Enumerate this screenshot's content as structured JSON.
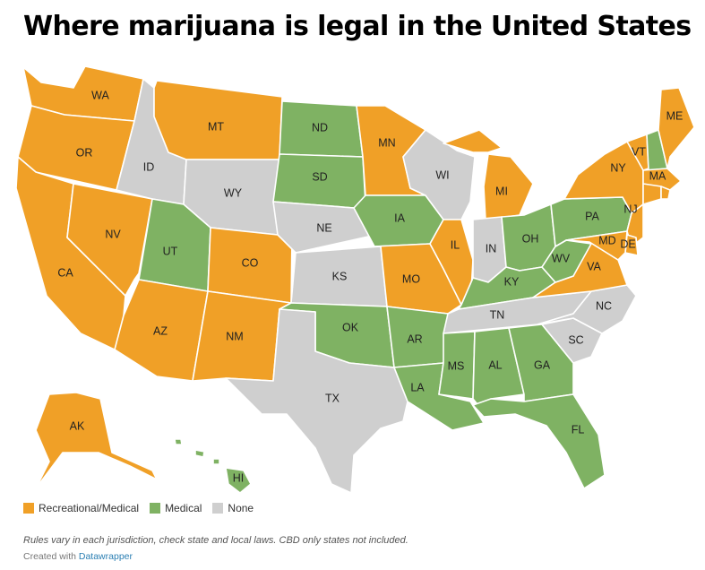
{
  "title": "Where marijuana is legal in the United States",
  "colors": {
    "recreational": "#f0a027",
    "medical": "#7fb263",
    "none": "#cfcfcf"
  },
  "legend": [
    {
      "key": "recreational",
      "label": "Recreational/Medical"
    },
    {
      "key": "medical",
      "label": "Medical"
    },
    {
      "key": "none",
      "label": "None"
    }
  ],
  "note": "Rules vary in each jurisdiction, check state and local laws. CBD only states not included.",
  "credit": {
    "prefix": "Created with",
    "link": "Datawrapper"
  },
  "states": [
    {
      "id": "WA",
      "status": "recreational"
    },
    {
      "id": "OR",
      "status": "recreational"
    },
    {
      "id": "CA",
      "status": "recreational"
    },
    {
      "id": "NV",
      "status": "recreational"
    },
    {
      "id": "ID",
      "status": "none"
    },
    {
      "id": "MT",
      "status": "recreational"
    },
    {
      "id": "WY",
      "status": "none"
    },
    {
      "id": "UT",
      "status": "medical"
    },
    {
      "id": "AZ",
      "status": "recreational"
    },
    {
      "id": "CO",
      "status": "recreational"
    },
    {
      "id": "NM",
      "status": "recreational"
    },
    {
      "id": "ND",
      "status": "medical"
    },
    {
      "id": "SD",
      "status": "medical"
    },
    {
      "id": "NE",
      "status": "none"
    },
    {
      "id": "KS",
      "status": "none"
    },
    {
      "id": "OK",
      "status": "medical"
    },
    {
      "id": "TX",
      "status": "none"
    },
    {
      "id": "MN",
      "status": "recreational"
    },
    {
      "id": "IA",
      "status": "medical"
    },
    {
      "id": "MO",
      "status": "recreational"
    },
    {
      "id": "AR",
      "status": "medical"
    },
    {
      "id": "LA",
      "status": "medical"
    },
    {
      "id": "WI",
      "status": "none"
    },
    {
      "id": "IL",
      "status": "recreational"
    },
    {
      "id": "MI",
      "status": "recreational"
    },
    {
      "id": "IN",
      "status": "none"
    },
    {
      "id": "OH",
      "status": "medical"
    },
    {
      "id": "KY",
      "status": "medical"
    },
    {
      "id": "TN",
      "status": "none"
    },
    {
      "id": "MS",
      "status": "medical"
    },
    {
      "id": "AL",
      "status": "medical"
    },
    {
      "id": "GA",
      "status": "medical"
    },
    {
      "id": "FL",
      "status": "medical"
    },
    {
      "id": "SC",
      "status": "none"
    },
    {
      "id": "NC",
      "status": "none"
    },
    {
      "id": "VA",
      "status": "recreational"
    },
    {
      "id": "WV",
      "status": "medical"
    },
    {
      "id": "PA",
      "status": "medical"
    },
    {
      "id": "NY",
      "status": "recreational"
    },
    {
      "id": "VT",
      "status": "recreational"
    },
    {
      "id": "NH",
      "status": "medical"
    },
    {
      "id": "ME",
      "status": "recreational"
    },
    {
      "id": "MA",
      "status": "recreational"
    },
    {
      "id": "CT",
      "status": "recreational"
    },
    {
      "id": "RI",
      "status": "recreational"
    },
    {
      "id": "NJ",
      "status": "recreational"
    },
    {
      "id": "DE",
      "status": "recreational"
    },
    {
      "id": "MD",
      "status": "recreational"
    },
    {
      "id": "AK",
      "status": "recreational"
    },
    {
      "id": "HI",
      "status": "medical"
    }
  ]
}
